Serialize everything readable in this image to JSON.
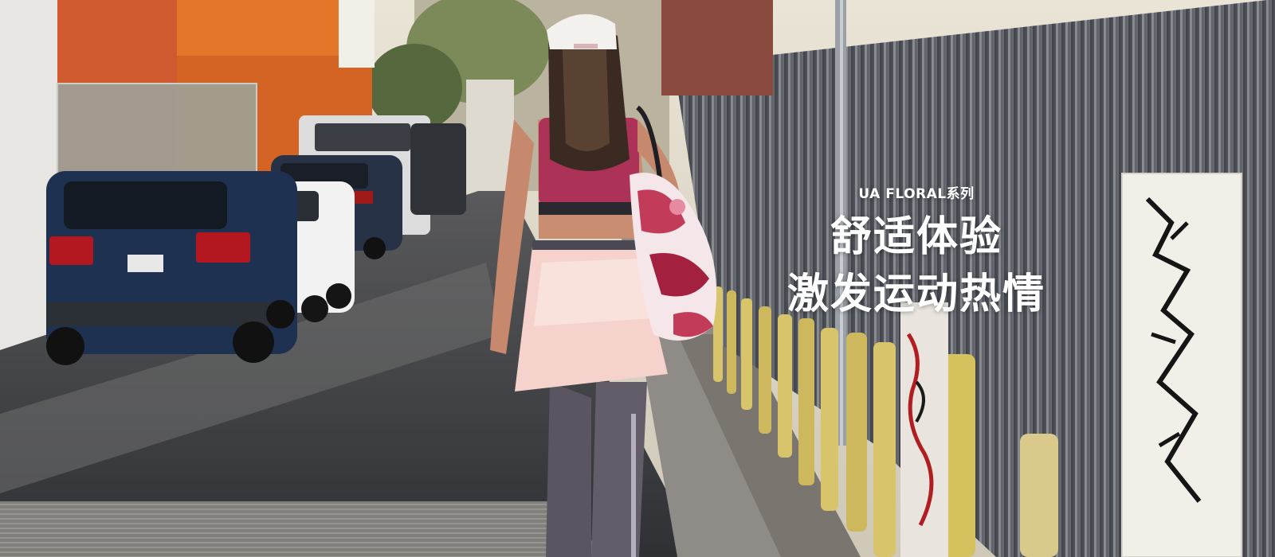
{
  "hero": {
    "eyebrow": "UA FLORAL系列",
    "headline_line1": "舒适体验",
    "headline_line2": "激发运动热情",
    "text_color": "#ffffff"
  },
  "scene": {
    "description_icons": [
      "parked-cars",
      "walking-woman",
      "floral-bag",
      "yellow-bollards",
      "metal-fence",
      "graffiti-post"
    ],
    "palette": {
      "street": "#3a3b3f",
      "sidewalk": "#8f8b86",
      "fence": "#5d6168",
      "bollard": "#d8c46a",
      "floral_pink": "#c23c5a",
      "skirt": "#f5d2cc",
      "leggings": "#5a5560",
      "orange_building": "#e2772a"
    }
  }
}
